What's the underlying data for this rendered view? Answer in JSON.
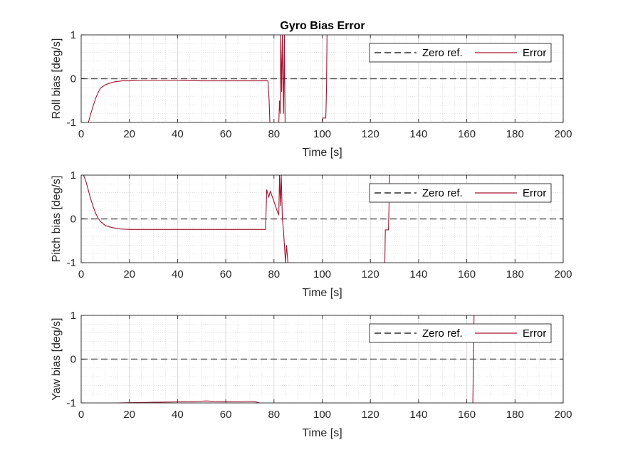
{
  "chart_data": [
    {
      "type": "line",
      "title": "Gyro Bias Error",
      "xlabel": "Time [s]",
      "ylabel": "Roll bias [deg/s]",
      "xlim": [
        0,
        200
      ],
      "ylim": [
        -1,
        1
      ],
      "xticks": [
        0,
        20,
        40,
        60,
        80,
        100,
        120,
        140,
        160,
        180,
        200
      ],
      "yticks": [
        -1,
        0,
        1
      ],
      "grid": true,
      "minor_grid": true,
      "legend": "top-right",
      "series": [
        {
          "name": "Zero ref.",
          "style": "dashed",
          "color": "#000000",
          "points": [
            [
              0,
              0
            ],
            [
              200,
              0
            ]
          ]
        },
        {
          "name": "Error",
          "style": "solid",
          "color": "#a2142f",
          "points": [
            [
              3,
              -1
            ],
            [
              3.5,
              -0.9
            ],
            [
              4,
              -0.8
            ],
            [
              5,
              -0.62
            ],
            [
              6,
              -0.45
            ],
            [
              7,
              -0.32
            ],
            [
              8,
              -0.22
            ],
            [
              10,
              -0.14
            ],
            [
              12,
              -0.1
            ],
            [
              14,
              -0.07
            ],
            [
              17,
              -0.05
            ],
            [
              20,
              -0.05
            ],
            [
              25,
              -0.04
            ],
            [
              30,
              -0.04
            ],
            [
              40,
              -0.04
            ],
            [
              50,
              -0.05
            ],
            [
              60,
              -0.05
            ],
            [
              70,
              -0.05
            ],
            [
              77.5,
              -0.05
            ],
            [
              78,
              -0.5
            ],
            [
              78.3,
              -1
            ],
            [
              null,
              null
            ],
            [
              82,
              -1
            ],
            [
              82.3,
              -0.5
            ],
            [
              82.6,
              -0.8
            ],
            [
              82.8,
              1
            ],
            [
              83.2,
              -0.3
            ],
            [
              83.5,
              1
            ],
            [
              84,
              -0.8
            ],
            [
              84.3,
              1
            ],
            [
              84.6,
              -1
            ],
            [
              null,
              null
            ],
            [
              100,
              -1
            ],
            [
              100.3,
              -0.9
            ],
            [
              101.5,
              -0.9
            ],
            [
              101.8,
              -0.2
            ],
            [
              102,
              1
            ]
          ]
        }
      ]
    },
    {
      "type": "line",
      "xlabel": "Time [s]",
      "ylabel": "Pitch bias [deg/s]",
      "xlim": [
        0,
        200
      ],
      "ylim": [
        -1,
        1
      ],
      "xticks": [
        0,
        20,
        40,
        60,
        80,
        100,
        120,
        140,
        160,
        180,
        200
      ],
      "yticks": [
        -1,
        0,
        1
      ],
      "grid": true,
      "minor_grid": true,
      "legend": "top-right",
      "series": [
        {
          "name": "Zero ref.",
          "style": "dashed",
          "color": "#000000",
          "points": [
            [
              0,
              0
            ],
            [
              200,
              0
            ]
          ]
        },
        {
          "name": "Error",
          "style": "solid",
          "color": "#a2142f",
          "points": [
            [
              0,
              1
            ],
            [
              1,
              1
            ],
            [
              2,
              0.85
            ],
            [
              3,
              0.65
            ],
            [
              4,
              0.45
            ],
            [
              5,
              0.28
            ],
            [
              6,
              0.13
            ],
            [
              7,
              0.02
            ],
            [
              8,
              -0.06
            ],
            [
              10,
              -0.15
            ],
            [
              13,
              -0.2
            ],
            [
              16,
              -0.23
            ],
            [
              20,
              -0.24
            ],
            [
              30,
              -0.24
            ],
            [
              40,
              -0.24
            ],
            [
              50,
              -0.24
            ],
            [
              60,
              -0.24
            ],
            [
              70,
              -0.24
            ],
            [
              76.5,
              -0.24
            ],
            [
              77,
              0.67
            ],
            [
              77.8,
              0.5
            ],
            [
              78.5,
              0.63
            ],
            [
              80,
              0.4
            ],
            [
              81.5,
              0.15
            ],
            [
              82,
              0.1
            ],
            [
              82.3,
              1
            ],
            [
              82.7,
              0.3
            ],
            [
              83,
              1
            ],
            [
              83.5,
              0
            ],
            [
              84,
              -0.3
            ],
            [
              84.8,
              -1
            ],
            [
              85.2,
              -0.6
            ],
            [
              85.8,
              -1
            ],
            [
              null,
              null
            ],
            [
              126,
              -1
            ],
            [
              126.2,
              -0.25
            ],
            [
              127.5,
              -0.25
            ],
            [
              128,
              1
            ]
          ]
        }
      ]
    },
    {
      "type": "line",
      "xlabel": "Time [s]",
      "ylabel": "Yaw bias [deg/s]",
      "xlim": [
        0,
        200
      ],
      "ylim": [
        -1,
        1
      ],
      "xticks": [
        0,
        20,
        40,
        60,
        80,
        100,
        120,
        140,
        160,
        180,
        200
      ],
      "yticks": [
        -1,
        0,
        1
      ],
      "grid": true,
      "minor_grid": true,
      "legend": "top-right",
      "series": [
        {
          "name": "Zero ref.",
          "style": "dashed",
          "color": "#000000",
          "points": [
            [
              0,
              0
            ],
            [
              200,
              0
            ]
          ]
        },
        {
          "name": "Error",
          "style": "solid",
          "color": "#a2142f",
          "points": [
            [
              15,
              -1
            ],
            [
              20,
              -0.995
            ],
            [
              25,
              -0.99
            ],
            [
              30,
              -0.985
            ],
            [
              35,
              -0.98
            ],
            [
              40,
              -0.975
            ],
            [
              45,
              -0.97
            ],
            [
              50,
              -0.96
            ],
            [
              52,
              -0.955
            ],
            [
              55,
              -0.965
            ],
            [
              60,
              -0.97
            ],
            [
              65,
              -0.975
            ],
            [
              70,
              -0.96
            ],
            [
              72,
              -0.97
            ],
            [
              74,
              -1
            ],
            [
              null,
              null
            ],
            [
              162.5,
              -1
            ],
            [
              162.8,
              0.2
            ],
            [
              163,
              1
            ]
          ]
        }
      ]
    }
  ]
}
